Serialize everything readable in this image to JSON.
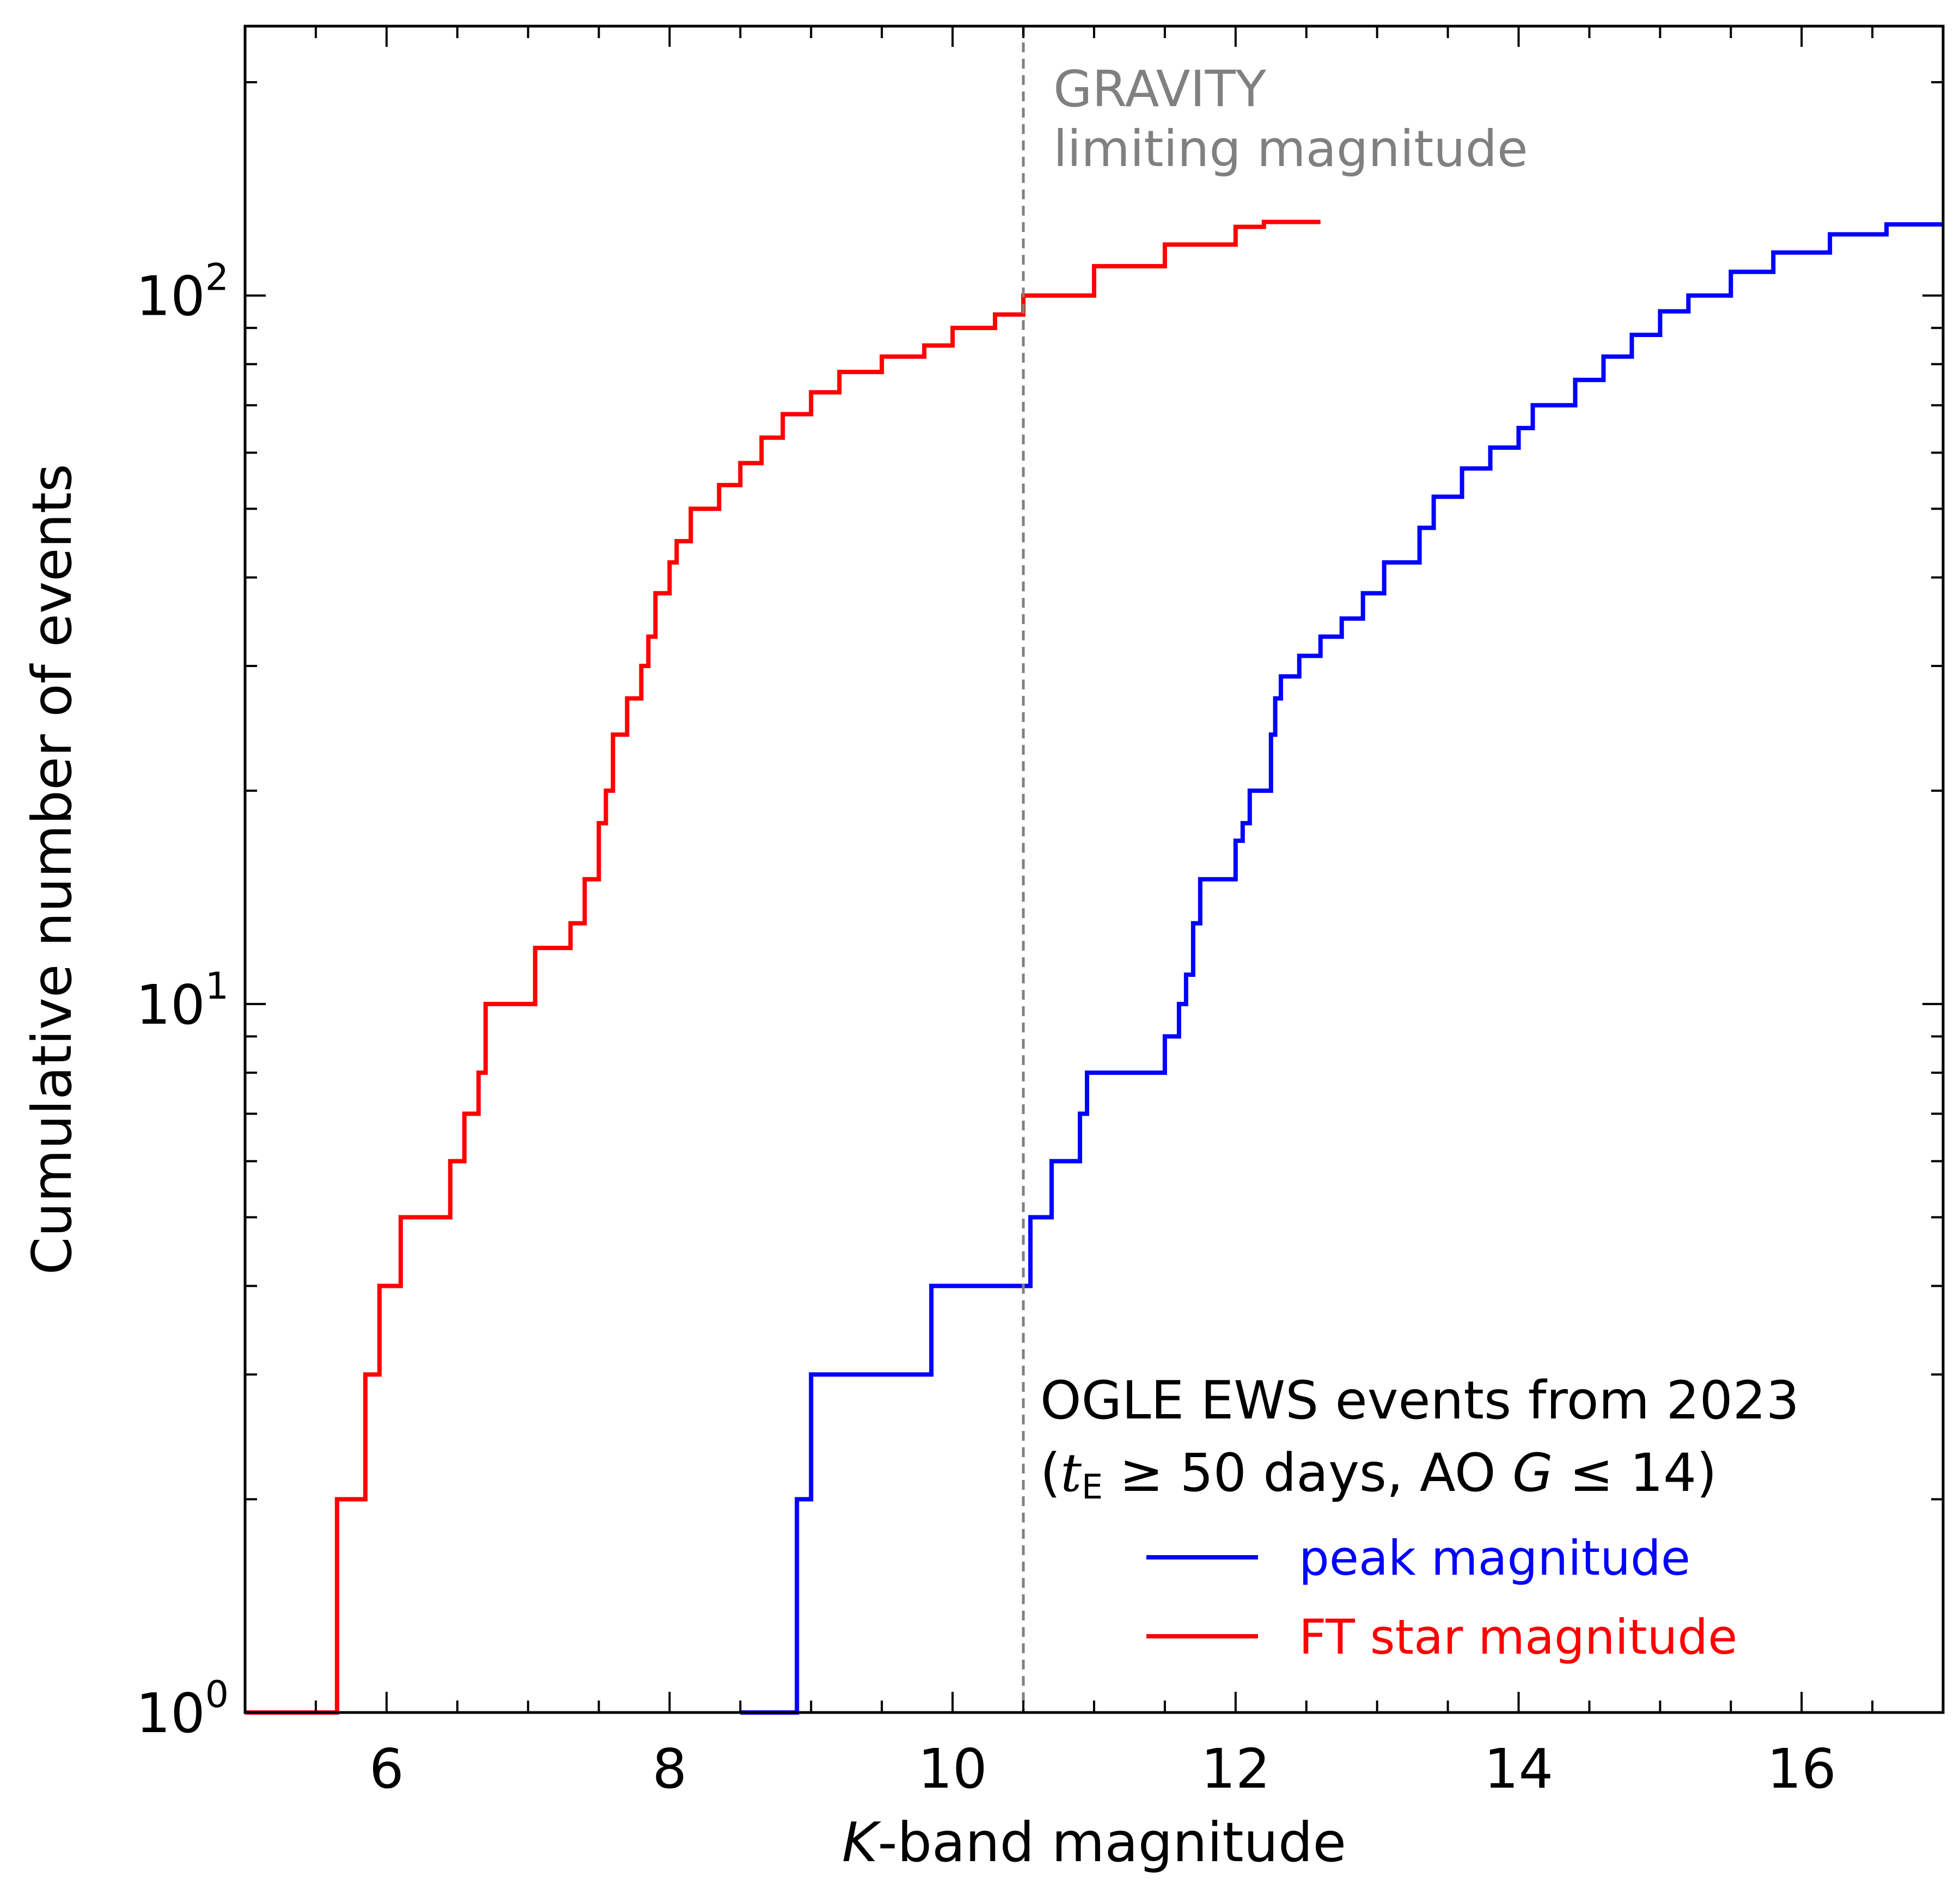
{
  "chart_data": {
    "type": "line",
    "subtype": "cumulative-step",
    "xlabel": {
      "italic": "K",
      "rest": "-band magnitude"
    },
    "ylabel": "Cumulative number of events",
    "xlim": [
      5,
      17
    ],
    "ylim": [
      1,
      240
    ],
    "yscale": "log",
    "x_ticks": [
      6,
      8,
      10,
      12,
      14,
      16
    ],
    "x_tick_labels": [
      "6",
      "8",
      "10",
      "12",
      "14",
      "16"
    ],
    "y_ticks": [
      {
        "value": 1,
        "base": "10",
        "exp": "0"
      },
      {
        "value": 10,
        "base": "10",
        "exp": "1"
      },
      {
        "value": 100,
        "base": "10",
        "exp": "2"
      }
    ],
    "grid": false,
    "legend_placement": "lower-right",
    "legend_title": {
      "line1": "OGLE EWS events from 2023",
      "line2": {
        "open": "(",
        "t": "t",
        "sub": "E",
        "rel1": " ≥ 50",
        "mid": " days, AO ",
        "g": "G",
        "rel2": " ≤ 14",
        "close": ")"
      }
    },
    "vline": {
      "x": 10.5,
      "label_line1": "GRAVITY",
      "label_line2": "limiting magnitude",
      "color": "#808080"
    },
    "series": [
      {
        "name": "peak magnitude",
        "color": "#0000ff",
        "steps": [
          [
            8.5,
            1
          ],
          [
            8.9,
            2
          ],
          [
            9.0,
            3
          ],
          [
            9.85,
            4
          ],
          [
            10.55,
            5
          ],
          [
            10.7,
            6
          ],
          [
            10.9,
            7
          ],
          [
            10.95,
            8
          ],
          [
            11.5,
            9
          ],
          [
            11.6,
            10
          ],
          [
            11.65,
            11
          ],
          [
            11.7,
            13
          ],
          [
            11.75,
            15
          ],
          [
            12.0,
            17
          ],
          [
            12.05,
            18
          ],
          [
            12.1,
            20
          ],
          [
            12.25,
            24
          ],
          [
            12.28,
            27
          ],
          [
            12.32,
            29
          ],
          [
            12.45,
            31
          ],
          [
            12.6,
            33
          ],
          [
            12.75,
            35
          ],
          [
            12.9,
            38
          ],
          [
            13.05,
            42
          ],
          [
            13.3,
            47
          ],
          [
            13.4,
            52
          ],
          [
            13.6,
            57
          ],
          [
            13.8,
            61
          ],
          [
            14.0,
            65
          ],
          [
            14.1,
            70
          ],
          [
            14.4,
            76
          ],
          [
            14.6,
            82
          ],
          [
            14.8,
            88
          ],
          [
            15.0,
            95
          ],
          [
            15.2,
            100
          ],
          [
            15.5,
            108
          ],
          [
            15.8,
            115
          ],
          [
            16.2,
            122
          ],
          [
            16.6,
            126
          ]
        ]
      },
      {
        "name": "FT star magnitude",
        "color": "#ff0000",
        "steps": [
          [
            5.0,
            1
          ],
          [
            5.65,
            2
          ],
          [
            5.85,
            3
          ],
          [
            5.95,
            4
          ],
          [
            6.1,
            5
          ],
          [
            6.45,
            6
          ],
          [
            6.55,
            7
          ],
          [
            6.65,
            8
          ],
          [
            6.7,
            10
          ],
          [
            7.05,
            12
          ],
          [
            7.3,
            13
          ],
          [
            7.4,
            15
          ],
          [
            7.5,
            18
          ],
          [
            7.55,
            20
          ],
          [
            7.6,
            24
          ],
          [
            7.7,
            27
          ],
          [
            7.8,
            30
          ],
          [
            7.85,
            33
          ],
          [
            7.9,
            38
          ],
          [
            8.0,
            42
          ],
          [
            8.05,
            45
          ],
          [
            8.15,
            50
          ],
          [
            8.35,
            54
          ],
          [
            8.5,
            58
          ],
          [
            8.65,
            63
          ],
          [
            8.8,
            68
          ],
          [
            9.0,
            73
          ],
          [
            9.2,
            78
          ],
          [
            9.5,
            82
          ],
          [
            9.8,
            85
          ],
          [
            10.0,
            90
          ],
          [
            10.3,
            94
          ],
          [
            10.5,
            100
          ],
          [
            11.0,
            110
          ],
          [
            11.5,
            118
          ],
          [
            12.0,
            125
          ],
          [
            12.2,
            127
          ]
        ]
      }
    ]
  }
}
